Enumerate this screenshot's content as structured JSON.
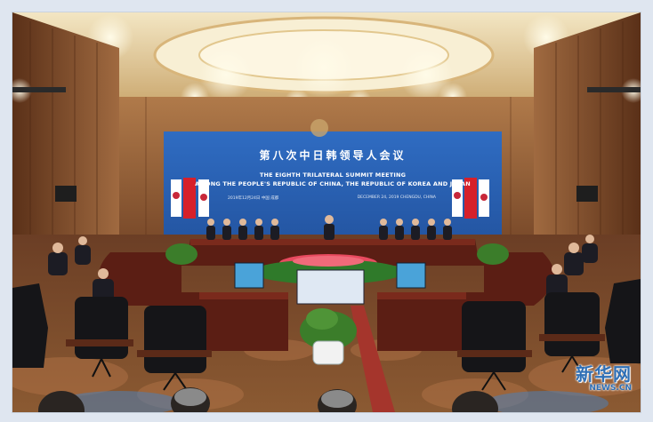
{
  "backdrop": {
    "title_cn": "第八次中日韩领导人会议",
    "title_en_line1": "THE EIGHTH TRILATERAL SUMMIT MEETING",
    "title_en_line2": "AMONG THE PEOPLE'S REPUBLIC OF CHINA, THE REPUBLIC OF KOREA AND JAPAN",
    "date_left": "2019年12月24日 中国 成都",
    "date_right": "DECEMBER 24, 2019 CHENGDU, CHINA"
  },
  "watermark": {
    "brand_cn": "新华网",
    "brand_en": "NEWS.CN"
  },
  "colors": {
    "backdrop_blue": "#2c63b8",
    "carpet_red": "#a5352c",
    "wall_wood": "#8a5a36",
    "brand_blue": "#2f6fb5"
  }
}
